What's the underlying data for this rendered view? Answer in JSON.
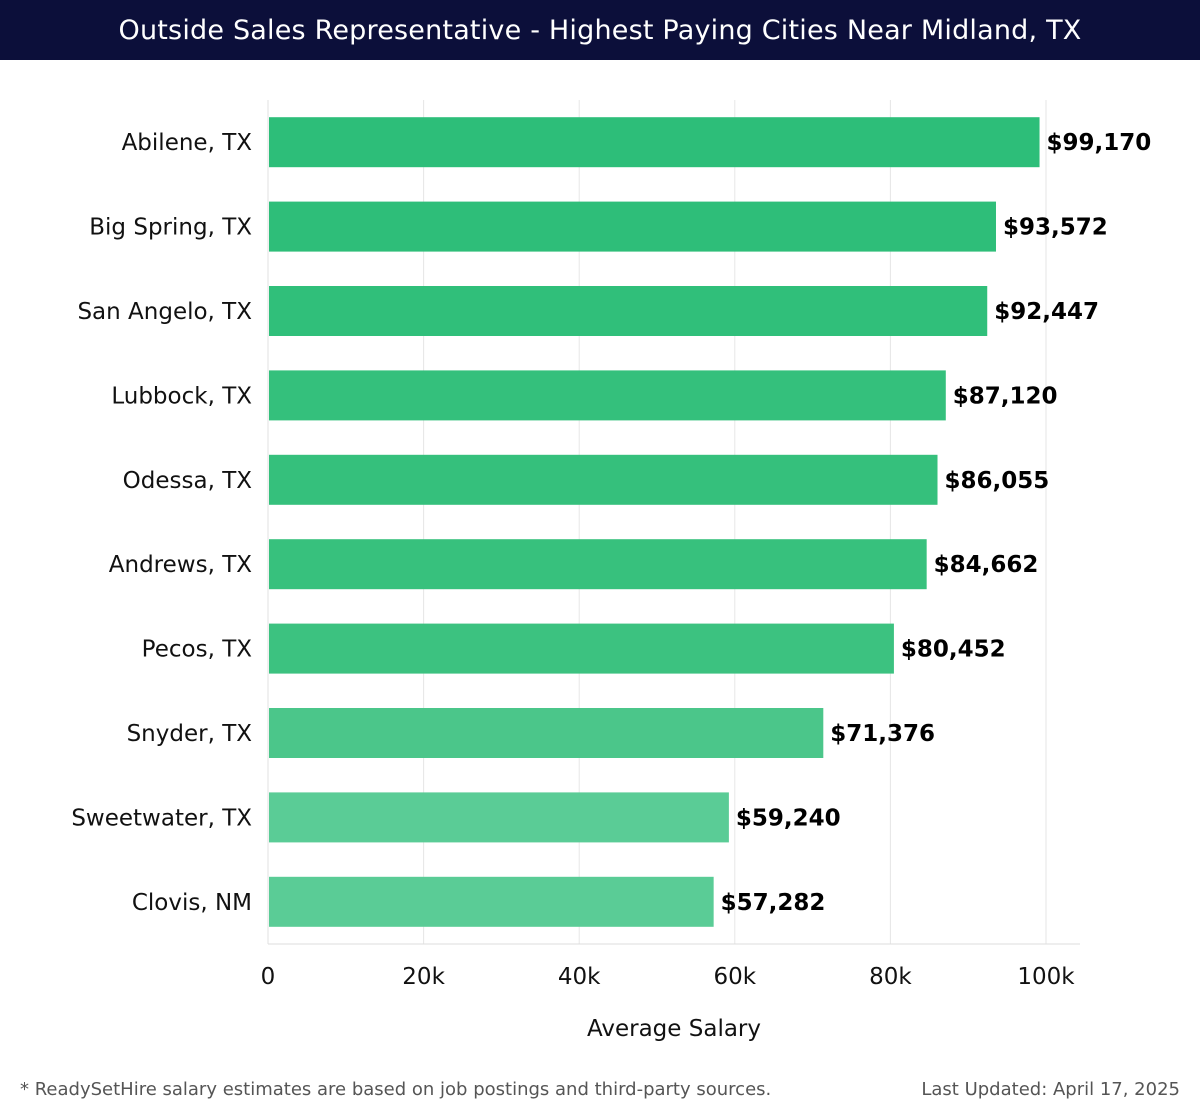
{
  "chart_data": {
    "type": "bar",
    "orientation": "horizontal",
    "title": "Outside Sales Representative - Highest Paying Cities Near Midland, TX",
    "xlabel": "Average Salary",
    "ylabel": "",
    "xlim": [
      0,
      104000
    ],
    "ticks": [
      {
        "value": 0,
        "label": "0"
      },
      {
        "value": 20000,
        "label": "20k"
      },
      {
        "value": 40000,
        "label": "40k"
      },
      {
        "value": 60000,
        "label": "60k"
      },
      {
        "value": 80000,
        "label": "80k"
      },
      {
        "value": 100000,
        "label": "100k"
      }
    ],
    "grid": true,
    "categories": [
      "Abilene, TX",
      "Big Spring, TX",
      "San Angelo, TX",
      "Lubbock, TX",
      "Odessa, TX",
      "Andrews, TX",
      "Pecos, TX",
      "Snyder, TX",
      "Sweetwater, TX",
      "Clovis, NM"
    ],
    "values": [
      99170,
      93572,
      92447,
      87120,
      86055,
      84662,
      80452,
      71376,
      59240,
      57282
    ],
    "value_labels": [
      "$99,170",
      "$93,572",
      "$92,447",
      "$87,120",
      "$86,055",
      "$84,662",
      "$80,452",
      "$71,376",
      "$59,240",
      "$57,282"
    ],
    "bar_colors": [
      "#2dbe79",
      "#2ebe79",
      "#30bf7a",
      "#34c07c",
      "#35c07c",
      "#37c17d",
      "#3cc280",
      "#4bc68a",
      "#5acc96",
      "#5acc96"
    ]
  },
  "footer": {
    "note": "* ReadySetHire salary estimates are based on job postings and third-party sources.",
    "updated": "Last Updated: April 17, 2025"
  }
}
